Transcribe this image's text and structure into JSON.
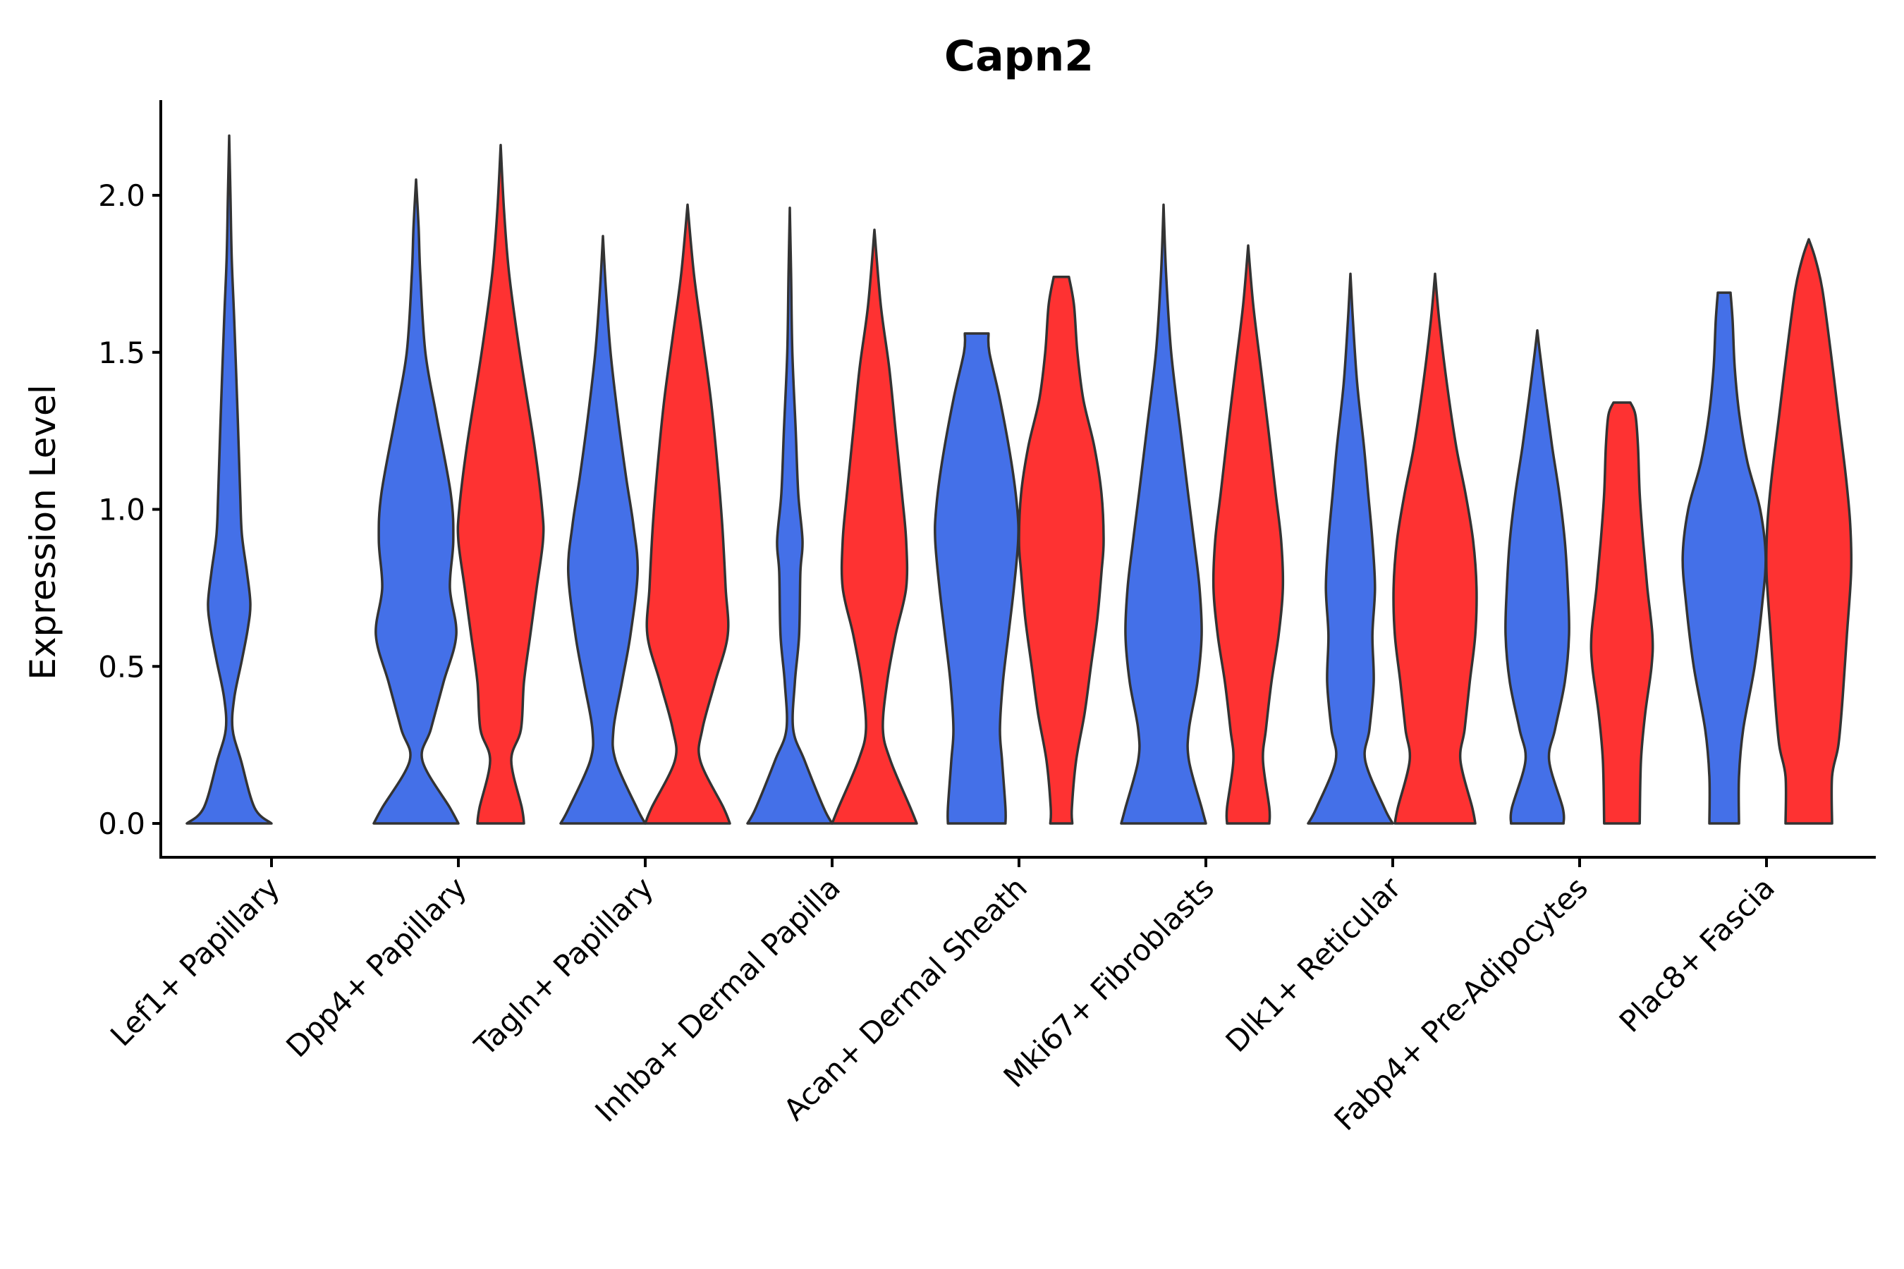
{
  "chart_data": {
    "type": "violin",
    "title": "Capn2",
    "xlabel": "",
    "ylabel": "Expression Level",
    "ylim": [
      -0.11,
      2.3
    ],
    "yticks": [
      "0.0",
      "0.5",
      "1.0",
      "1.5",
      "2.0"
    ],
    "ytick_values": [
      0,
      0.5,
      1.0,
      1.5,
      2.0
    ],
    "grid": false,
    "categories": [
      "Lef1+ Papillary",
      "Dpp4+ Papillary",
      "Tagln+ Papillary",
      "Inhba+ Dermal Papilla",
      "Acan+ Dermal Sheath",
      "Mki67+ Fibroblasts",
      "Dlk1+ Reticular",
      "Fabp4+ Pre-Adipocytes",
      "Plac8+ Fascia"
    ],
    "colors": {
      "group_a": "#4470E8",
      "group_b": "#FE3232",
      "outline": "#333333"
    },
    "violins": [
      {
        "category": "Lef1+ Papillary",
        "group": "a",
        "max": 2.19,
        "profile": [
          [
            0,
            1
          ],
          [
            0.05,
            0.6
          ],
          [
            0.2,
            0.28
          ],
          [
            0.3,
            0.08
          ],
          [
            0.4,
            0.12
          ],
          [
            0.52,
            0.3
          ],
          [
            0.62,
            0.44
          ],
          [
            0.7,
            0.5
          ],
          [
            0.8,
            0.42
          ],
          [
            0.92,
            0.3
          ],
          [
            1.05,
            0.26
          ],
          [
            1.3,
            0.2
          ],
          [
            1.6,
            0.12
          ],
          [
            1.8,
            0.06
          ],
          [
            2.0,
            0.03
          ],
          [
            2.19,
            0
          ]
        ]
      },
      {
        "category": "Dpp4+ Papillary",
        "group": "a",
        "max": 2.05,
        "profile": [
          [
            0,
            1
          ],
          [
            0.05,
            0.8
          ],
          [
            0.2,
            0.15
          ],
          [
            0.3,
            0.35
          ],
          [
            0.45,
            0.65
          ],
          [
            0.6,
            0.95
          ],
          [
            0.75,
            0.8
          ],
          [
            0.9,
            0.88
          ],
          [
            1.05,
            0.82
          ],
          [
            1.3,
            0.48
          ],
          [
            1.5,
            0.22
          ],
          [
            1.75,
            0.1
          ],
          [
            1.9,
            0.06
          ],
          [
            2.05,
            0
          ]
        ]
      },
      {
        "category": "Dpp4+ Papillary",
        "group": "b",
        "max": 2.16,
        "profile": [
          [
            0,
            0.55
          ],
          [
            0.05,
            0.5
          ],
          [
            0.2,
            0.25
          ],
          [
            0.3,
            0.48
          ],
          [
            0.45,
            0.55
          ],
          [
            0.6,
            0.7
          ],
          [
            0.75,
            0.85
          ],
          [
            0.9,
            1
          ],
          [
            1.0,
            0.98
          ],
          [
            1.2,
            0.8
          ],
          [
            1.5,
            0.45
          ],
          [
            1.75,
            0.2
          ],
          [
            1.95,
            0.08
          ],
          [
            2.16,
            0
          ]
        ]
      },
      {
        "category": "Tagln+ Papillary",
        "group": "a",
        "max": 1.87,
        "profile": [
          [
            0,
            1
          ],
          [
            0.05,
            0.8
          ],
          [
            0.2,
            0.3
          ],
          [
            0.3,
            0.25
          ],
          [
            0.45,
            0.45
          ],
          [
            0.6,
            0.65
          ],
          [
            0.8,
            0.82
          ],
          [
            0.95,
            0.72
          ],
          [
            1.1,
            0.55
          ],
          [
            1.3,
            0.35
          ],
          [
            1.5,
            0.18
          ],
          [
            1.7,
            0.07
          ],
          [
            1.87,
            0
          ]
        ]
      },
      {
        "category": "Tagln+ Papillary",
        "group": "b",
        "max": 1.97,
        "profile": [
          [
            0,
            1
          ],
          [
            0.05,
            0.85
          ],
          [
            0.2,
            0.3
          ],
          [
            0.3,
            0.35
          ],
          [
            0.45,
            0.65
          ],
          [
            0.6,
            0.95
          ],
          [
            0.75,
            0.9
          ],
          [
            0.95,
            0.82
          ],
          [
            1.15,
            0.7
          ],
          [
            1.35,
            0.55
          ],
          [
            1.55,
            0.35
          ],
          [
            1.75,
            0.15
          ],
          [
            1.97,
            0
          ]
        ]
      },
      {
        "category": "Inhba+ Dermal Papilla",
        "group": "a",
        "max": 1.96,
        "profile": [
          [
            0,
            1
          ],
          [
            0.05,
            0.8
          ],
          [
            0.2,
            0.35
          ],
          [
            0.3,
            0.08
          ],
          [
            0.45,
            0.12
          ],
          [
            0.6,
            0.22
          ],
          [
            0.8,
            0.25
          ],
          [
            0.9,
            0.3
          ],
          [
            1.05,
            0.2
          ],
          [
            1.25,
            0.14
          ],
          [
            1.5,
            0.06
          ],
          [
            1.75,
            0.03
          ],
          [
            1.96,
            0
          ]
        ]
      },
      {
        "category": "Inhba+ Dermal Papilla",
        "group": "b",
        "max": 1.89,
        "profile": [
          [
            0,
            1
          ],
          [
            0.05,
            0.85
          ],
          [
            0.2,
            0.38
          ],
          [
            0.3,
            0.2
          ],
          [
            0.45,
            0.3
          ],
          [
            0.6,
            0.5
          ],
          [
            0.75,
            0.75
          ],
          [
            0.9,
            0.75
          ],
          [
            1.05,
            0.65
          ],
          [
            1.25,
            0.5
          ],
          [
            1.45,
            0.35
          ],
          [
            1.65,
            0.15
          ],
          [
            1.89,
            0
          ]
        ]
      },
      {
        "category": "Acan+ Dermal Sheath",
        "group": "a",
        "max": 1.56,
        "profile": [
          [
            0,
            0.68
          ],
          [
            0.05,
            0.68
          ],
          [
            0.2,
            0.6
          ],
          [
            0.3,
            0.55
          ],
          [
            0.45,
            0.62
          ],
          [
            0.6,
            0.75
          ],
          [
            0.75,
            0.88
          ],
          [
            0.9,
            0.98
          ],
          [
            1.0,
            0.96
          ],
          [
            1.15,
            0.82
          ],
          [
            1.35,
            0.55
          ],
          [
            1.5,
            0.3
          ],
          [
            1.56,
            0.28
          ]
        ]
      },
      {
        "category": "Acan+ Dermal Sheath",
        "group": "b",
        "max": 1.74,
        "profile": [
          [
            0,
            0.26
          ],
          [
            0.05,
            0.25
          ],
          [
            0.2,
            0.35
          ],
          [
            0.35,
            0.55
          ],
          [
            0.5,
            0.7
          ],
          [
            0.65,
            0.85
          ],
          [
            0.8,
            0.95
          ],
          [
            0.9,
            1
          ],
          [
            1.05,
            0.95
          ],
          [
            1.2,
            0.78
          ],
          [
            1.35,
            0.52
          ],
          [
            1.5,
            0.38
          ],
          [
            1.65,
            0.3
          ],
          [
            1.74,
            0.18
          ]
        ]
      },
      {
        "category": "Mki67+ Fibroblasts",
        "group": "a",
        "max": 1.97,
        "profile": [
          [
            0,
            1
          ],
          [
            0.05,
            0.9
          ],
          [
            0.2,
            0.6
          ],
          [
            0.3,
            0.6
          ],
          [
            0.45,
            0.8
          ],
          [
            0.6,
            0.9
          ],
          [
            0.75,
            0.85
          ],
          [
            0.9,
            0.72
          ],
          [
            1.05,
            0.58
          ],
          [
            1.25,
            0.4
          ],
          [
            1.5,
            0.18
          ],
          [
            1.75,
            0.06
          ],
          [
            1.97,
            0
          ]
        ]
      },
      {
        "category": "Mki67+ Fibroblasts",
        "group": "b",
        "max": 1.84,
        "profile": [
          [
            0,
            0.5
          ],
          [
            0.05,
            0.5
          ],
          [
            0.2,
            0.35
          ],
          [
            0.3,
            0.42
          ],
          [
            0.45,
            0.55
          ],
          [
            0.6,
            0.72
          ],
          [
            0.75,
            0.82
          ],
          [
            0.9,
            0.78
          ],
          [
            1.05,
            0.65
          ],
          [
            1.25,
            0.48
          ],
          [
            1.45,
            0.3
          ],
          [
            1.65,
            0.12
          ],
          [
            1.84,
            0
          ]
        ]
      },
      {
        "category": "Dlk1+ Reticular",
        "group": "a",
        "max": 1.75,
        "profile": [
          [
            0,
            1
          ],
          [
            0.05,
            0.8
          ],
          [
            0.2,
            0.35
          ],
          [
            0.3,
            0.45
          ],
          [
            0.45,
            0.55
          ],
          [
            0.6,
            0.52
          ],
          [
            0.75,
            0.58
          ],
          [
            0.9,
            0.52
          ],
          [
            1.05,
            0.42
          ],
          [
            1.2,
            0.32
          ],
          [
            1.4,
            0.16
          ],
          [
            1.6,
            0.06
          ],
          [
            1.75,
            0
          ]
        ]
      },
      {
        "category": "Dlk1+ Reticular",
        "group": "b",
        "max": 1.75,
        "profile": [
          [
            0,
            0.95
          ],
          [
            0.05,
            0.88
          ],
          [
            0.2,
            0.6
          ],
          [
            0.3,
            0.7
          ],
          [
            0.45,
            0.82
          ],
          [
            0.6,
            0.95
          ],
          [
            0.75,
            0.98
          ],
          [
            0.9,
            0.9
          ],
          [
            1.05,
            0.72
          ],
          [
            1.2,
            0.5
          ],
          [
            1.4,
            0.28
          ],
          [
            1.6,
            0.1
          ],
          [
            1.75,
            0
          ]
        ]
      },
      {
        "category": "Fabp4+ Pre-Adipocytes",
        "group": "a",
        "max": 1.57,
        "profile": [
          [
            0,
            0.62
          ],
          [
            0.05,
            0.6
          ],
          [
            0.2,
            0.28
          ],
          [
            0.3,
            0.42
          ],
          [
            0.45,
            0.65
          ],
          [
            0.6,
            0.75
          ],
          [
            0.75,
            0.72
          ],
          [
            0.9,
            0.65
          ],
          [
            1.05,
            0.52
          ],
          [
            1.2,
            0.35
          ],
          [
            1.35,
            0.2
          ],
          [
            1.5,
            0.06
          ],
          [
            1.57,
            0
          ]
        ]
      },
      {
        "category": "Fabp4+ Pre-Adipocytes",
        "group": "b",
        "max": 1.34,
        "profile": [
          [
            0,
            0.42
          ],
          [
            0.2,
            0.45
          ],
          [
            0.35,
            0.55
          ],
          [
            0.5,
            0.7
          ],
          [
            0.6,
            0.72
          ],
          [
            0.75,
            0.6
          ],
          [
            0.9,
            0.5
          ],
          [
            1.05,
            0.42
          ],
          [
            1.2,
            0.38
          ],
          [
            1.3,
            0.32
          ],
          [
            1.34,
            0.2
          ]
        ]
      },
      {
        "category": "Plac8+ Fascia",
        "group": "a",
        "max": 1.69,
        "profile": [
          [
            0,
            0.35
          ],
          [
            0.15,
            0.35
          ],
          [
            0.3,
            0.45
          ],
          [
            0.5,
            0.72
          ],
          [
            0.7,
            0.9
          ],
          [
            0.85,
            0.98
          ],
          [
            1.0,
            0.85
          ],
          [
            1.15,
            0.55
          ],
          [
            1.3,
            0.36
          ],
          [
            1.45,
            0.25
          ],
          [
            1.6,
            0.2
          ],
          [
            1.69,
            0.15
          ]
        ]
      },
      {
        "category": "Plac8+ Fascia",
        "group": "b",
        "max": 1.86,
        "profile": [
          [
            0,
            0.55
          ],
          [
            0.15,
            0.55
          ],
          [
            0.25,
            0.7
          ],
          [
            0.4,
            0.8
          ],
          [
            0.6,
            0.9
          ],
          [
            0.8,
            1
          ],
          [
            0.95,
            0.98
          ],
          [
            1.1,
            0.88
          ],
          [
            1.3,
            0.7
          ],
          [
            1.5,
            0.52
          ],
          [
            1.7,
            0.32
          ],
          [
            1.8,
            0.15
          ],
          [
            1.86,
            0
          ]
        ]
      }
    ]
  }
}
